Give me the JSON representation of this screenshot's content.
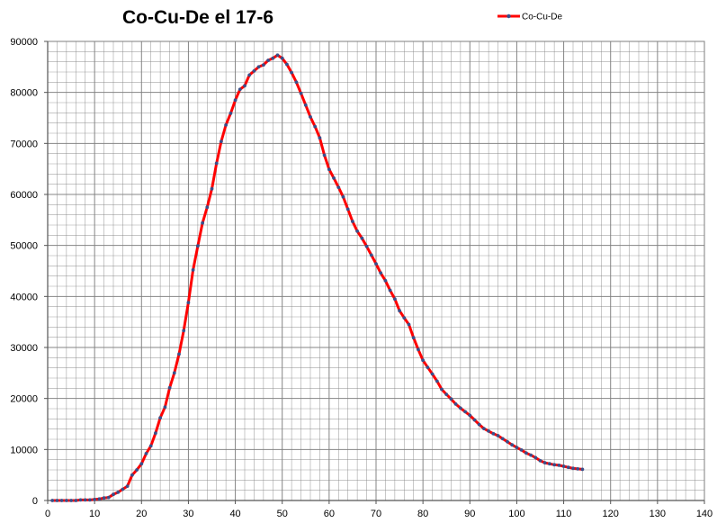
{
  "chart_data": {
    "type": "line",
    "title": "Co-Cu-De el 17-6",
    "xlabel": "",
    "ylabel": "",
    "xlim": [
      0,
      140
    ],
    "ylim": [
      0,
      90000
    ],
    "x_ticks": [
      0,
      10,
      20,
      30,
      40,
      50,
      60,
      70,
      80,
      90,
      100,
      110,
      120,
      130,
      140
    ],
    "y_ticks": [
      0,
      10000,
      20000,
      30000,
      40000,
      50000,
      60000,
      70000,
      80000,
      90000
    ],
    "grid": true,
    "legend_position": "top-right",
    "colors": {
      "line": "#ff0000",
      "marker": "#3b4f8a",
      "grid": "#7f7f7f"
    },
    "series": [
      {
        "name": "Co-Cu-De",
        "x": [
          1,
          2,
          3,
          4,
          5,
          6,
          7,
          8,
          9,
          10,
          11,
          12,
          13,
          14,
          15,
          16,
          17,
          18,
          19,
          20,
          21,
          22,
          23,
          24,
          25,
          26,
          27,
          28,
          29,
          30,
          31,
          32,
          33,
          34,
          35,
          36,
          37,
          38,
          39,
          40,
          41,
          42,
          43,
          44,
          45,
          46,
          47,
          48,
          49,
          50,
          51,
          52,
          53,
          54,
          55,
          56,
          57,
          58,
          59,
          60,
          61,
          62,
          63,
          64,
          65,
          66,
          67,
          68,
          69,
          70,
          71,
          72,
          73,
          74,
          75,
          76,
          77,
          78,
          79,
          80,
          81,
          82,
          83,
          84,
          85,
          86,
          87,
          88,
          89,
          90,
          91,
          92,
          93,
          94,
          95,
          96,
          97,
          98,
          99,
          100,
          101,
          102,
          103,
          104,
          105,
          106,
          107,
          108,
          109,
          110,
          111,
          112,
          113,
          114
        ],
        "values": [
          0,
          0,
          0,
          0,
          0,
          0,
          100,
          100,
          100,
          200,
          300,
          500,
          600,
          1200,
          1600,
          2200,
          2800,
          5000,
          6000,
          7200,
          9200,
          10700,
          13200,
          16200,
          18300,
          22100,
          25000,
          28700,
          33300,
          38800,
          45200,
          49900,
          54400,
          57500,
          61100,
          66100,
          70400,
          73600,
          75900,
          78500,
          80600,
          81300,
          83400,
          84200,
          85000,
          85400,
          86300,
          86700,
          87300,
          86700,
          85500,
          83900,
          82000,
          79800,
          77500,
          75200,
          73300,
          71100,
          67700,
          64900,
          63200,
          61400,
          59500,
          57100,
          54700,
          52800,
          51400,
          49800,
          48100,
          46400,
          44600,
          43100,
          41200,
          39500,
          37200,
          35800,
          34500,
          31900,
          29600,
          27500,
          26100,
          24800,
          23400,
          21800,
          20800,
          19900,
          18900,
          18100,
          17400,
          16700,
          15800,
          14900,
          14100,
          13600,
          13100,
          12700,
          12100,
          11500,
          10900,
          10400,
          9900,
          9300,
          8900,
          8400,
          7800,
          7400,
          7200,
          7000,
          6900,
          6700,
          6500,
          6300,
          6200,
          6100
        ]
      }
    ]
  }
}
